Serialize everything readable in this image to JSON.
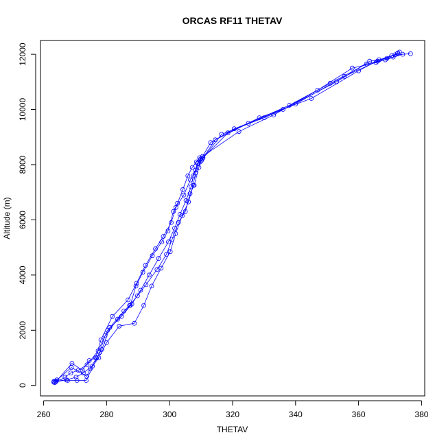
{
  "chart_data": {
    "type": "line",
    "title": "ORCAS RF11 THETAV",
    "xlabel": "THETAV",
    "ylabel": "Altitude (m)",
    "xlim": [
      259,
      381
    ],
    "ylim": [
      -380,
      12500
    ],
    "xticks": [
      260,
      280,
      300,
      320,
      340,
      360,
      380
    ],
    "yticks": [
      0,
      2000,
      4000,
      6000,
      8000,
      10000,
      12000
    ],
    "grid": false,
    "legend": "none",
    "color": "#0000ff",
    "series": [
      {
        "x": [
          263.3,
          264.2,
          267.6,
          270.6,
          273.5,
          277.8,
          279.5,
          283.5,
          287.5,
          289.3,
          291.5,
          294.5,
          297.5,
          299.5,
          301.2,
          302.5,
          304.2,
          305.8,
          307.2,
          308.5,
          309.5,
          310.3,
          310.6,
          318.5,
          328.5,
          345.0,
          360.0,
          366.5,
          370.5,
          372.3
        ],
        "y": [
          150,
          200,
          180,
          180,
          180,
          1200,
          1800,
          2400,
          2900,
          3600,
          4100,
          4700,
          5200,
          5600,
          6300,
          6600,
          7100,
          7600,
          7900,
          8100,
          8250,
          8200,
          8250,
          9150,
          9700,
          10400,
          11400,
          11800,
          11950,
          12030
        ]
      },
      {
        "x": [
          263.5,
          266.8,
          268.6,
          271.0,
          273.8,
          277.3,
          280.3,
          284.7,
          288.0,
          290.8,
          293.5,
          296.5,
          299.6,
          301.6,
          303.3,
          305.2,
          306.8,
          307.6,
          308.8,
          309.8,
          310.5,
          322.0,
          333.0,
          347.0,
          358.0,
          365.5,
          371.0,
          373.0
        ],
        "y": [
          100,
          300,
          450,
          550,
          750,
          1250,
          2000,
          2500,
          2950,
          3450,
          4000,
          4600,
          5200,
          5700,
          6200,
          6700,
          7200,
          7600,
          8050,
          8200,
          8300,
          9200,
          9800,
          10700,
          11500,
          11700,
          11900,
          12080
        ]
      },
      {
        "x": [
          264.0,
          269.0,
          272.3,
          274.5,
          276.5,
          278.2,
          281.8,
          286.8,
          289.5,
          292.3,
          295.5,
          298.0,
          300.5,
          302.0,
          304.5,
          306.6,
          308.3,
          309.0,
          310.5,
          313.0,
          320.5,
          336.0,
          353.0,
          363.5,
          369.0,
          372.5
        ],
        "y": [
          150,
          800,
          550,
          900,
          1000,
          1650,
          2500,
          3100,
          3700,
          4350,
          4950,
          5400,
          5900,
          6450,
          6900,
          7450,
          7800,
          8050,
          8300,
          8800,
          9300,
          10000,
          11000,
          11750,
          11850,
          12050
        ]
      },
      {
        "x": [
          263.8,
          268.8,
          273.7,
          274.8,
          276.8,
          278.5,
          281.0,
          285.5,
          287.3,
          289.8,
          292.5,
          296.0,
          299.0,
          300.8,
          302.8,
          305.0,
          306.5,
          307.8,
          309.3,
          310.1,
          316.5,
          330.0,
          340.0,
          355.5,
          366.0,
          371.5,
          376.5
        ],
        "y": [
          150,
          650,
          330,
          600,
          1000,
          1300,
          2100,
          2700,
          2900,
          3250,
          3650,
          4200,
          4750,
          5300,
          5900,
          6300,
          6950,
          7250,
          7900,
          8150,
          9100,
          9700,
          10200,
          11200,
          11750,
          11980,
          12020
        ]
      },
      {
        "x": [
          263.2,
          267.2,
          270.3,
          272.6,
          275.5,
          277.5,
          280.0,
          284.0,
          288.8,
          291.8,
          294.3,
          297.3,
          300.2,
          301.9,
          304.0,
          306.0,
          307.5,
          308.2,
          309.7,
          310.3,
          314.5,
          325.0,
          338.0,
          351.0,
          362.5,
          368.5,
          374.0
        ],
        "y": [
          120,
          200,
          300,
          450,
          700,
          1000,
          1550,
          2150,
          2250,
          2900,
          3600,
          4250,
          4850,
          5500,
          6150,
          6650,
          7250,
          7700,
          8100,
          8200,
          8900,
          9500,
          10150,
          10950,
          11650,
          11800,
          12000
        ]
      }
    ]
  }
}
